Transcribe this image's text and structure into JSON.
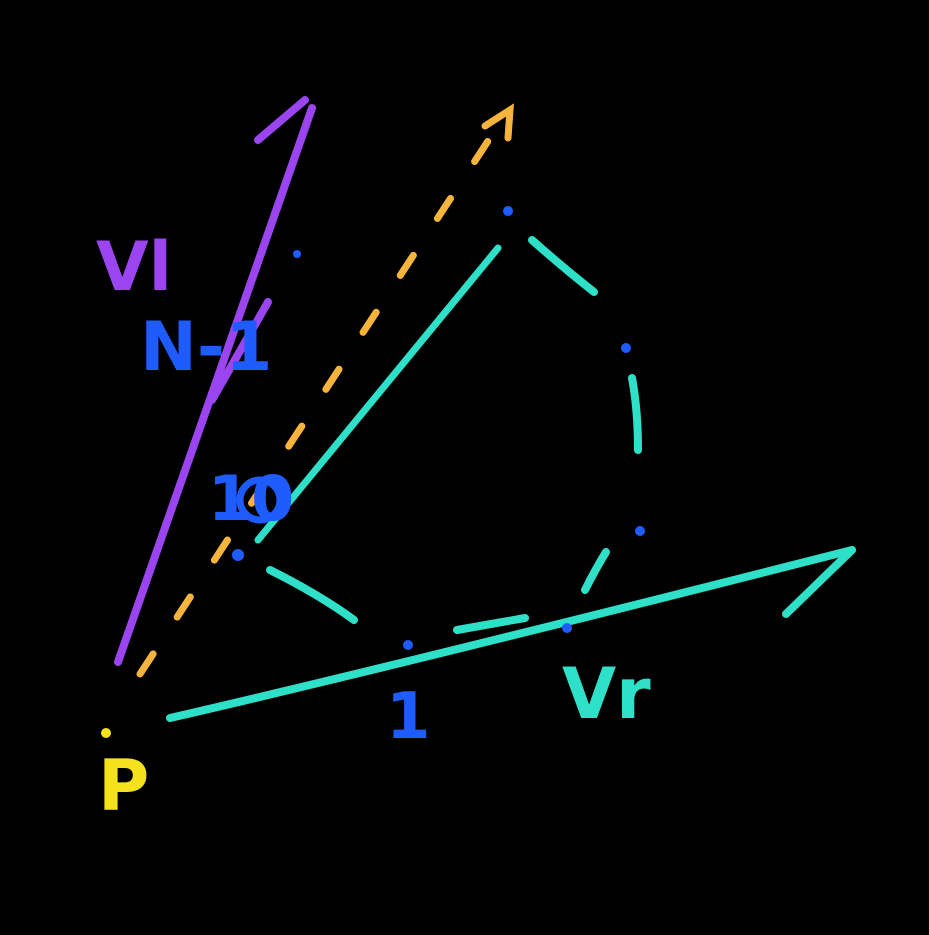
{
  "diagram": {
    "background": "#000000",
    "colors": {
      "left_vector": "#9b45f0",
      "right_vector": "#2fe0c8",
      "dashed_vector": "#f7b43c",
      "blue_marks": "#1f5cff",
      "point": "#f5e11c"
    },
    "labels": {
      "left_vector": "Vl",
      "right_vector": "Vr",
      "point": "P",
      "left_distance": "N-1",
      "center_value": "10",
      "bottom_value": "1"
    }
  }
}
